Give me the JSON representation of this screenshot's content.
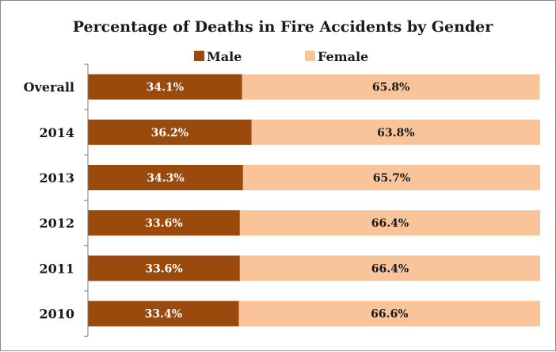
{
  "chart_data": {
    "type": "bar",
    "orientation": "horizontal",
    "stacked": true,
    "title": "Percentage of Deaths in Fire Accidents by Gender",
    "categories": [
      "Overall",
      "2014",
      "2013",
      "2012",
      "2011",
      "2010"
    ],
    "series": [
      {
        "name": "Male",
        "values": [
          34.1,
          36.2,
          34.3,
          33.6,
          33.6,
          33.4
        ],
        "labels": [
          "34.1%",
          "36.2%",
          "34.3%",
          "33.6%",
          "33.6%",
          "33.4%"
        ],
        "color": "#9b4a0d",
        "label_color": "#ffffff"
      },
      {
        "name": "Female",
        "values": [
          65.8,
          63.8,
          65.7,
          66.4,
          66.4,
          66.6
        ],
        "labels": [
          "65.8%",
          "63.8%",
          "65.7%",
          "66.4%",
          "66.4%",
          "66.6%"
        ],
        "color": "#f9c49a",
        "label_color": "#1a1a1a"
      }
    ],
    "xlim": [
      0,
      100
    ],
    "legend": "top",
    "grid": false
  }
}
